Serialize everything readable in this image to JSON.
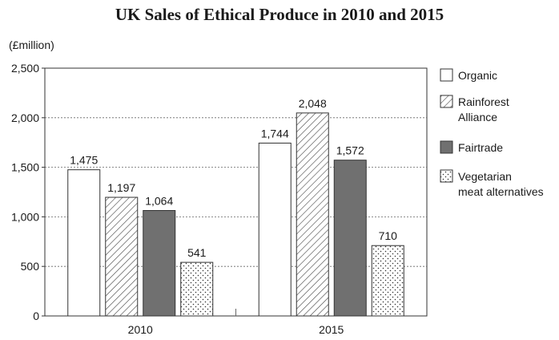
{
  "chart_data": {
    "type": "bar",
    "title": "UK Sales of Ethical Produce in 2010 and 2015",
    "ylabel": "(£million)",
    "xlabel": "",
    "ylim": [
      0,
      2500
    ],
    "yticks": [
      "0",
      "500",
      "1,000",
      "1,500",
      "2,000",
      "2,500"
    ],
    "categories": [
      "2010",
      "2015"
    ],
    "grid": true,
    "legend_position": "right",
    "series": [
      {
        "name": "Organic",
        "values": [
          1475,
          1744
        ],
        "labels": [
          "1,475",
          "1,744"
        ],
        "fill": "white"
      },
      {
        "name": "Rainforest Alliance",
        "legend_lines": [
          "Rainforest",
          "Alliance"
        ],
        "values": [
          1197,
          2048
        ],
        "labels": [
          "1,197",
          "2,048"
        ],
        "fill": "hatch"
      },
      {
        "name": "Fairtrade",
        "values": [
          1064,
          1572
        ],
        "labels": [
          "1,064",
          "1,572"
        ],
        "fill": "#707070"
      },
      {
        "name": "Vegetarian meat alternatives",
        "legend_lines": [
          "Vegetarian",
          "meat alternatives"
        ],
        "values": [
          541,
          710
        ],
        "labels": [
          "541",
          "710"
        ],
        "fill": "dots"
      }
    ]
  }
}
